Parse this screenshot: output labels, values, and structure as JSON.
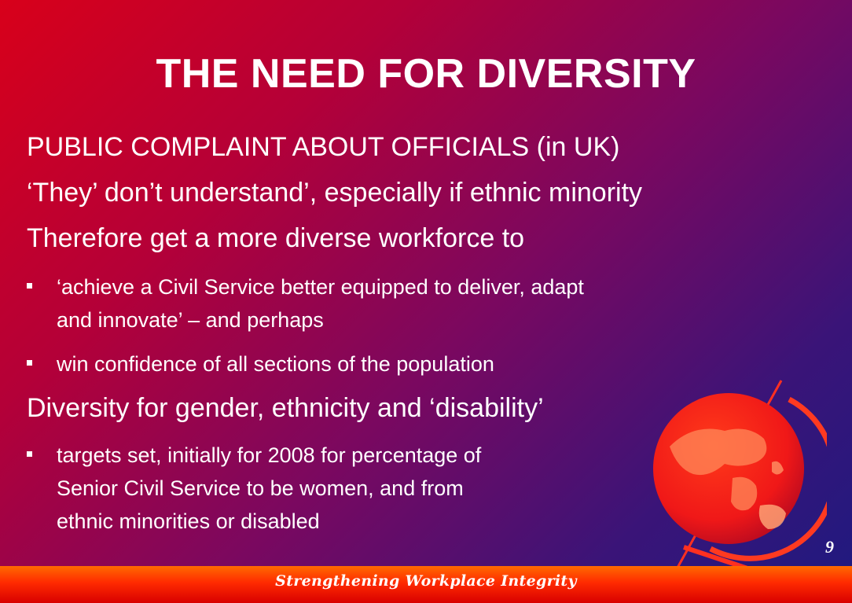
{
  "slide": {
    "title": "THE NEED FOR DIVERSITY",
    "line1": "PUBLIC COMPLAINT ABOUT OFFICIALS (in UK)",
    "line2": "‘They’ don’t understand’, especially if ethnic minority",
    "line3": "Therefore get a more diverse workforce to",
    "bullet1a": "‘achieve a Civil Service better equipped to deliver, adapt",
    "bullet1b": "and innovate’ – and perhaps",
    "bullet2": "win confidence of all sections of the population",
    "line4": "Diversity for gender, ethnicity and ‘disability’",
    "bullet3a": "targets set, initially for 2008 for percentage of",
    "bullet3b": "Senior Civil Service to be women, and from",
    "bullet3c": "ethnic minorities or disabled",
    "page_number": "9",
    "footer": "Strengthening Workplace Integrity"
  },
  "icons": {
    "globe": "globe-icon"
  }
}
